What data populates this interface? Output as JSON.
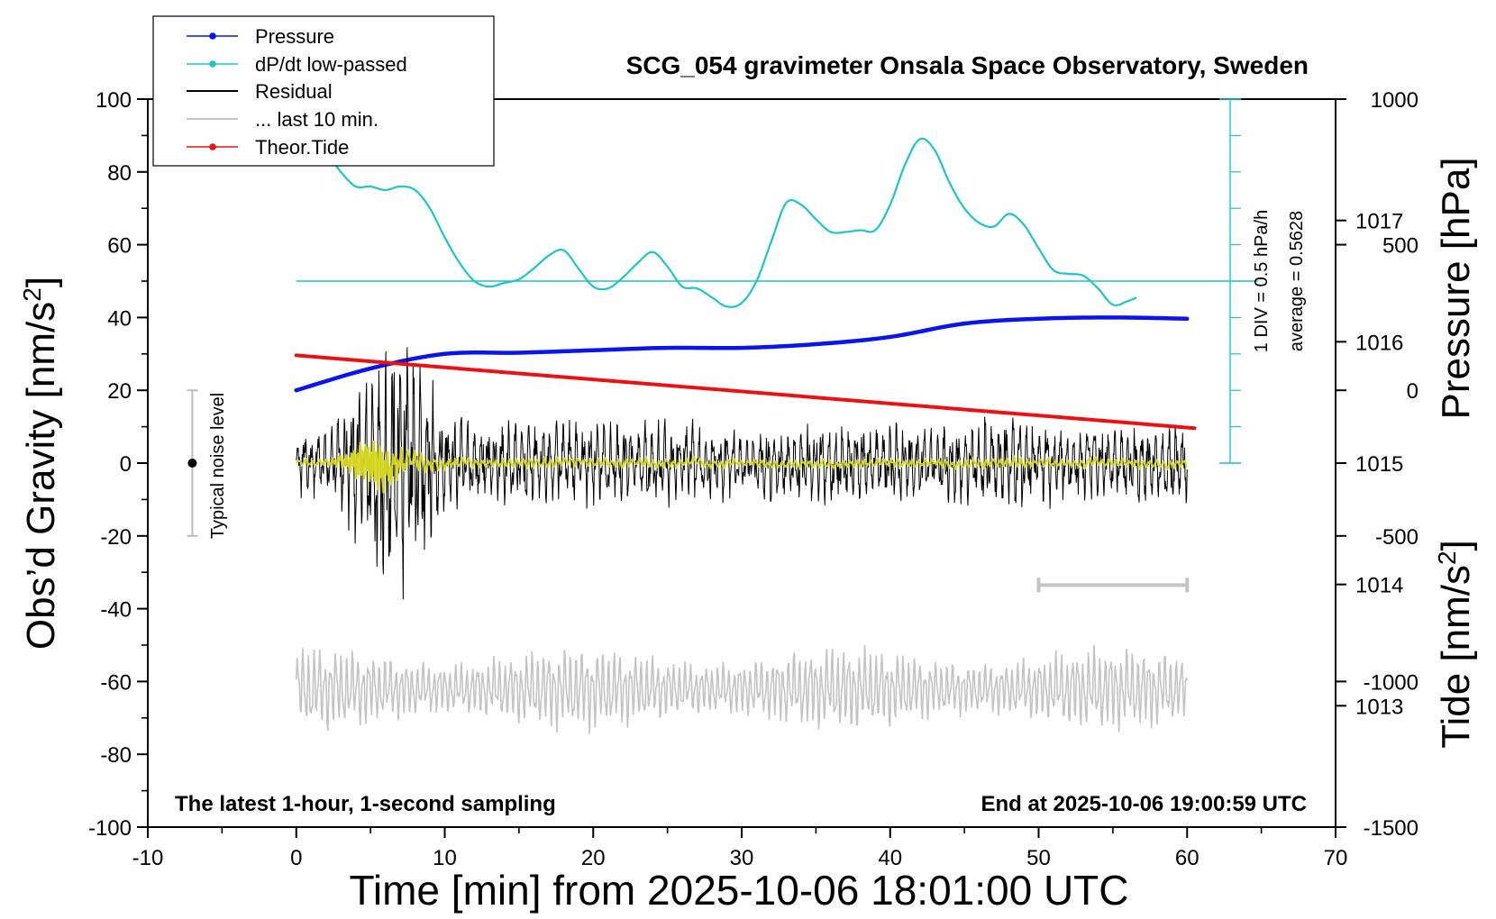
{
  "title": "SCG_054 gravimeter Onsala Space Observatory, Sweden",
  "bottom_left_note": "The latest 1-hour, 1-second sampling",
  "bottom_right_note": "End at 2025-10-06 19:00:59 UTC",
  "noise_label": "Typical noise level",
  "div_label": "1 DIV = 0.5 hPa/h",
  "avg_label": "average = 0.5628",
  "legend": {
    "pressure": "Pressure",
    "dpdt": "dP/dt low-passed",
    "residual": "Residual",
    "last10": "... last 10 min.",
    "tide": "Theor.Tide"
  },
  "colors": {
    "pressure": "#0a14ee",
    "dpdt": "#1cc6c6",
    "residual": "#000000",
    "residual_lowpass": "#d8d820",
    "last10": "#c4c4c4",
    "tide": "#ee1010"
  },
  "chart_data": {
    "type": "line",
    "title": "SCG_054 gravimeter Onsala Space Observatory, Sweden",
    "xlabel": "Time [min] from 2025-10-06 18:01:00 UTC",
    "ylabel_left": "Obs'd Gravity [nm/s2]",
    "ylabel_right_top": "Pressure [hPa]",
    "ylabel_right_bottom": "Tide [nm/s2]",
    "xlim": [
      -10,
      70
    ],
    "ylim": [
      -100,
      100
    ],
    "xticks": [
      "-10",
      "0",
      "10",
      "20",
      "30",
      "40",
      "50",
      "60",
      "70"
    ],
    "yticks_left": [
      "100",
      "80",
      "60",
      "40",
      "20",
      "0",
      "-20",
      "-40",
      "-60",
      "-80",
      "-100"
    ],
    "yticks_pressure": [
      "1017",
      "1016",
      "1015",
      "1014",
      "1013"
    ],
    "yticks_tide": [
      "1000",
      "500",
      "0",
      "-500",
      "-1000",
      "-1500"
    ],
    "pressure_range_hpa": [
      1012,
      1018
    ],
    "tide_range_nms2": [
      -1500,
      1000
    ],
    "grid": false,
    "legend_position": "top-left",
    "series": [
      {
        "name": "Pressure",
        "axis": "pressure",
        "x": [
          0,
          5,
          10,
          15,
          20,
          25,
          30,
          35,
          40,
          45,
          50,
          55,
          60
        ],
        "y": [
          1015.6,
          1015.78,
          1015.9,
          1015.91,
          1015.93,
          1015.95,
          1015.95,
          1015.98,
          1016.04,
          1016.15,
          1016.19,
          1016.2,
          1016.19
        ]
      },
      {
        "name": "dP/dt low-passed",
        "axis": "left",
        "x": [
          2.5,
          3,
          4,
          5,
          6,
          7,
          8,
          9,
          10,
          11,
          12,
          13,
          14,
          15,
          16,
          17,
          18,
          19,
          20,
          21,
          22,
          23,
          24,
          25,
          26,
          27,
          28,
          29,
          30,
          31,
          32,
          33,
          34,
          35,
          36,
          37,
          38,
          39,
          40,
          41,
          42,
          43,
          44,
          45,
          46,
          47,
          48,
          49,
          50,
          51,
          52,
          53,
          54,
          55,
          56,
          56.6
        ],
        "y": [
          83,
          80,
          76,
          76,
          75,
          76,
          75,
          70,
          62,
          55,
          50,
          48.5,
          49.5,
          50.5,
          53.5,
          57,
          58.5,
          53.5,
          48.5,
          48,
          51,
          55,
          58,
          54,
          48.5,
          48,
          45.5,
          43,
          44,
          50,
          61,
          71.5,
          71,
          67,
          63.5,
          63.5,
          64,
          64,
          71,
          82,
          89,
          86,
          77,
          70,
          66,
          65,
          68.5,
          65.5,
          59,
          53,
          52,
          51.5,
          48,
          43.5,
          44.5,
          45.5
        ]
      },
      {
        "name": "Residual",
        "axis": "left",
        "envelope_x": [
          0,
          2,
          4,
          5,
          6,
          7,
          8,
          9,
          10,
          12,
          15,
          20,
          25,
          30,
          35,
          40,
          45,
          48.5,
          50,
          55,
          60
        ],
        "envelope_amplitude": [
          7,
          8,
          16,
          22,
          25,
          33,
          28,
          22,
          12,
          9,
          10,
          10,
          10,
          8,
          9,
          9,
          9,
          12,
          9,
          9,
          9
        ]
      },
      {
        "name": "... last 10 min.",
        "axis": "left",
        "x_range": [
          0,
          60
        ],
        "center": -62,
        "amplitude": 10
      },
      {
        "name": "Theor.Tide",
        "axis": "tide",
        "x": [
          0,
          60.5
        ],
        "y": [
          120,
          -130
        ]
      }
    ],
    "annotations": [
      {
        "text": "Typical noise level",
        "x": -7,
        "y": 0,
        "range": [
          -20,
          20
        ]
      },
      {
        "text": "1 DIV = 0.5 hPa/h",
        "x": 62.9,
        "range": [
          0,
          100
        ]
      },
      {
        "text": "average = 0.5628",
        "y": 50
      },
      {
        "text": "10 min scale bar",
        "x_range": [
          50,
          60
        ],
        "y": -33.5
      }
    ]
  }
}
